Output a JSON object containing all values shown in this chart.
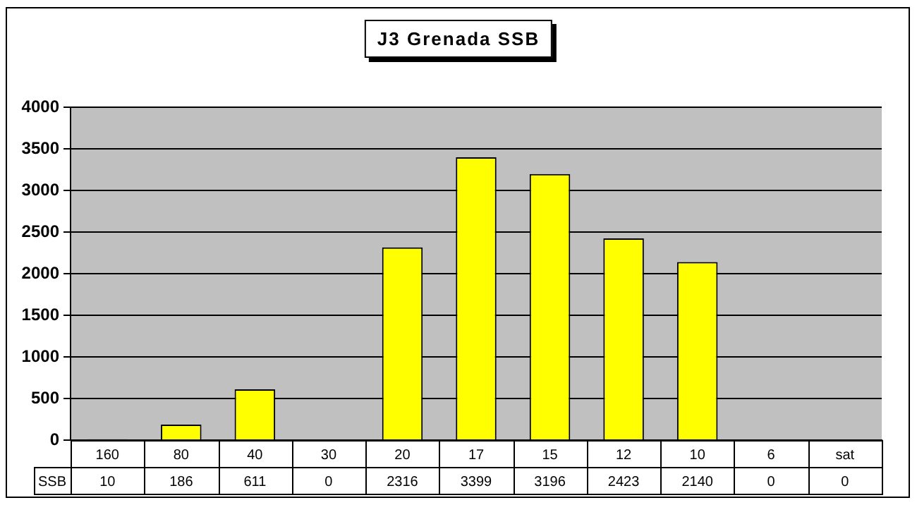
{
  "chart_data": {
    "type": "bar",
    "title": "J3 Grenada SSB",
    "categories": [
      "160",
      "80",
      "40",
      "30",
      "20",
      "17",
      "15",
      "12",
      "10",
      "6",
      "sat"
    ],
    "series": [
      {
        "name": "SSB",
        "color": "#ffff00",
        "values": [
          10,
          186,
          611,
          0,
          2316,
          3399,
          3196,
          2423,
          2140,
          0,
          0
        ]
      }
    ],
    "ylim": [
      0,
      4000
    ],
    "yticks": [
      0,
      500,
      1000,
      1500,
      2000,
      2500,
      3000,
      3500,
      4000
    ],
    "grid": "y",
    "legend": false,
    "data_labels": true
  }
}
